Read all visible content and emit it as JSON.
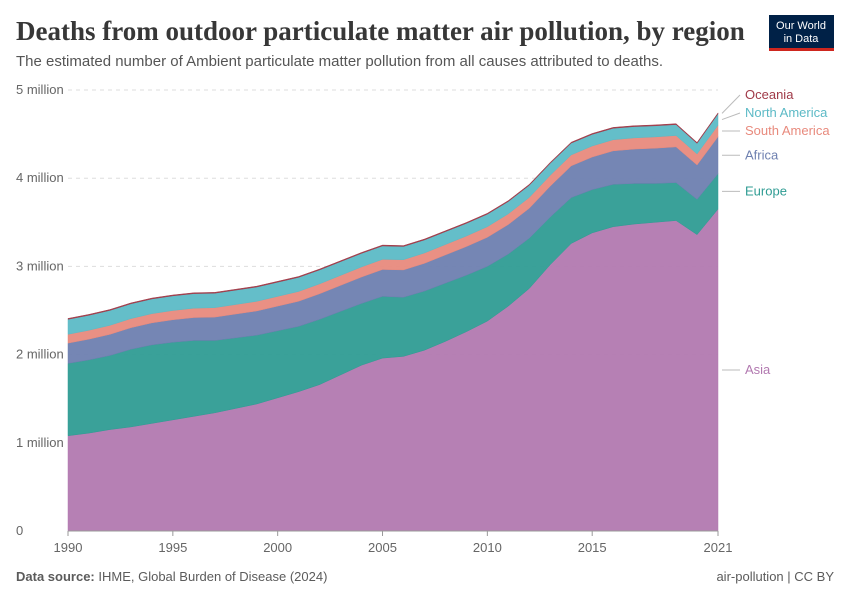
{
  "chart_data": {
    "type": "stacked-area",
    "title": "Deaths from outdoor particulate matter air pollution, by region",
    "subtitle": "The estimated number of Ambient particulate matter pollution from all causes attributed to deaths.",
    "logo": [
      "Our World",
      "in Data"
    ],
    "source_label": "Data source:",
    "source": "IHME, Global Burden of Disease (2024)",
    "footer_right": "air-pollution | CC BY",
    "x": [
      1990,
      1991,
      1992,
      1993,
      1994,
      1995,
      1996,
      1997,
      1998,
      1999,
      2000,
      2001,
      2002,
      2003,
      2004,
      2005,
      2006,
      2007,
      2008,
      2009,
      2010,
      2011,
      2012,
      2013,
      2014,
      2015,
      2016,
      2017,
      2018,
      2019,
      2020,
      2021
    ],
    "xlim": [
      1990,
      2021
    ],
    "xticks": [
      1990,
      1995,
      2000,
      2005,
      2010,
      2015,
      2021
    ],
    "ylim": [
      0,
      5000000
    ],
    "yticks": [
      0,
      {
        "value": 1000000,
        "label": "1 million"
      },
      {
        "value": 2000000,
        "label": "2 million"
      },
      {
        "value": 3000000,
        "label": "3 million"
      },
      {
        "value": 4000000,
        "label": "4 million"
      },
      {
        "value": 5000000,
        "label": "5 million"
      }
    ],
    "grid": true,
    "series": [
      {
        "name": "Asia",
        "color": "#b279b0",
        "values": [
          1080000,
          1110000,
          1150000,
          1180000,
          1220000,
          1260000,
          1300000,
          1340000,
          1390000,
          1440000,
          1510000,
          1580000,
          1660000,
          1770000,
          1880000,
          1960000,
          1980000,
          2050000,
          2150000,
          2260000,
          2380000,
          2550000,
          2750000,
          3020000,
          3260000,
          3380000,
          3450000,
          3480000,
          3500000,
          3520000,
          3360000,
          3650000
        ]
      },
      {
        "name": "Europe",
        "color": "#2f9c93",
        "values": [
          820000,
          830000,
          840000,
          880000,
          890000,
          880000,
          860000,
          820000,
          800000,
          780000,
          760000,
          740000,
          740000,
          720000,
          700000,
          700000,
          670000,
          670000,
          660000,
          640000,
          620000,
          590000,
          570000,
          540000,
          520000,
          490000,
          480000,
          460000,
          440000,
          430000,
          400000,
          400000
        ]
      },
      {
        "name": "Africa",
        "color": "#6e80b0",
        "values": [
          230000,
          235000,
          240000,
          245000,
          250000,
          255000,
          260000,
          265000,
          270000,
          275000,
          280000,
          285000,
          290000,
          295000,
          300000,
          305000,
          310000,
          315000,
          320000,
          325000,
          330000,
          335000,
          340000,
          350000,
          360000,
          370000,
          380000,
          390000,
          400000,
          405000,
          390000,
          420000
        ]
      },
      {
        "name": "South America",
        "color": "#e88a7d",
        "values": [
          100000,
          101000,
          102000,
          103000,
          104000,
          105000,
          106000,
          107000,
          108000,
          109000,
          110000,
          111000,
          112000,
          113000,
          114000,
          115000,
          116000,
          117000,
          118000,
          119000,
          120000,
          121000,
          122000,
          123000,
          124000,
          125000,
          126000,
          127000,
          128000,
          129000,
          125000,
          130000
        ]
      },
      {
        "name": "North America",
        "color": "#5cbac6",
        "values": [
          170000,
          170000,
          169000,
          168000,
          167000,
          166000,
          165000,
          164000,
          163000,
          162000,
          161000,
          160000,
          158000,
          156000,
          154000,
          152000,
          150000,
          148000,
          146000,
          144000,
          142000,
          140000,
          138000,
          136000,
          134000,
          132000,
          130000,
          128000,
          126000,
          124000,
          120000,
          130000
        ]
      },
      {
        "name": "Oceania",
        "color": "#a03a48",
        "values": [
          10000,
          10000,
          10000,
          10000,
          10000,
          10000,
          10000,
          10000,
          10000,
          10000,
          10000,
          10000,
          10000,
          10000,
          10000,
          10000,
          10000,
          10000,
          10000,
          10000,
          10000,
          10000,
          10000,
          10000,
          10000,
          10000,
          10000,
          10000,
          10000,
          10000,
          10000,
          10000
        ]
      }
    ]
  }
}
